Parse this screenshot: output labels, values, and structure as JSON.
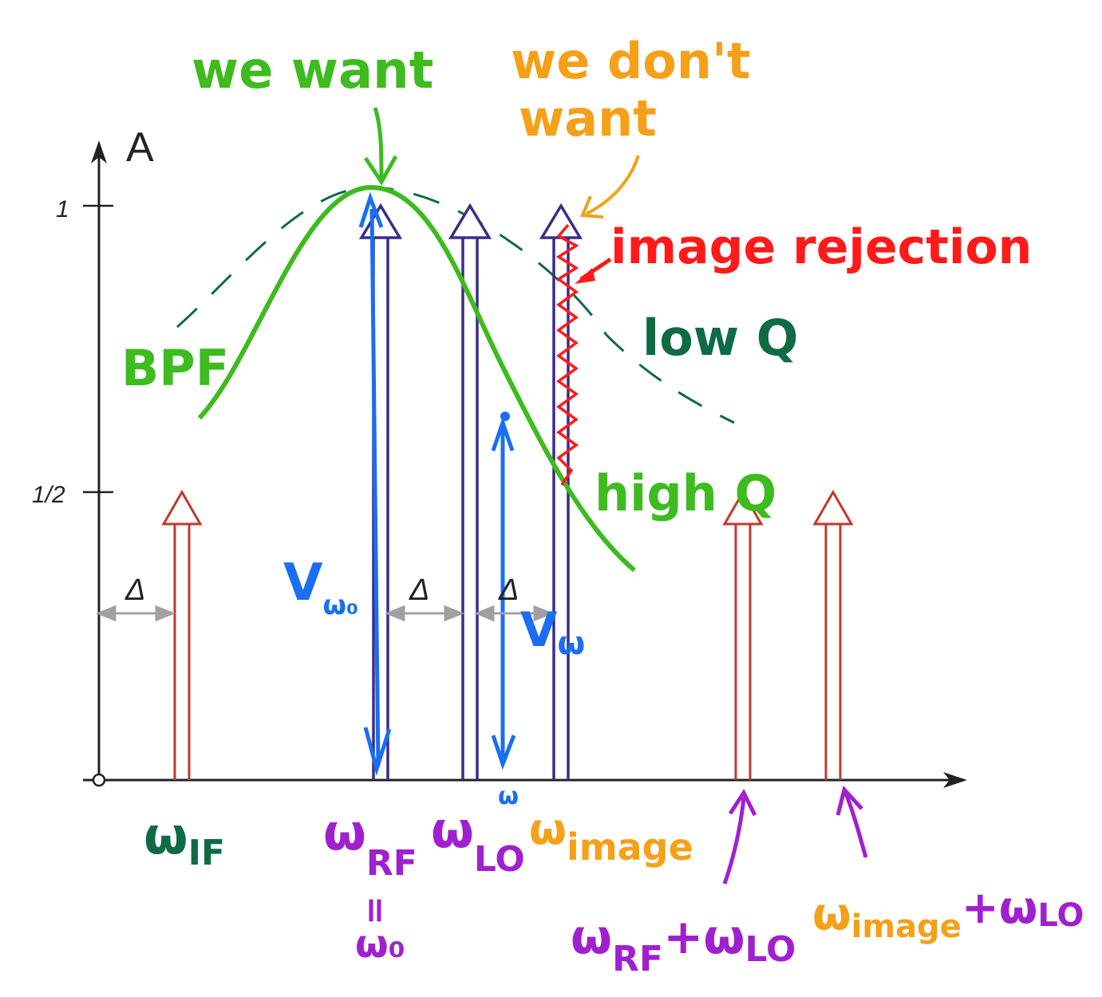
{
  "colors": {
    "axis": "#222222",
    "spur": "#c0392b",
    "lo": "#3d2b8a",
    "want": "#3dbb1f",
    "wantText": "#3dbb1f",
    "dontWant": "#f5a018",
    "rejection": "#ff1a1a",
    "lowQ": "#0e6b45",
    "blue": "#1a6ef2",
    "purple": "#a020d0",
    "delta": "#a0a0a0"
  },
  "axis": {
    "y_label": "A",
    "tick_1": "1",
    "tick_half": "1/2"
  },
  "deltas": [
    "Δ",
    "Δ",
    "Δ"
  ],
  "annotations": {
    "we_want": "we want",
    "we_dont_want_1": "we don't",
    "we_dont_want_2": "want",
    "image_rejection": "image rejection",
    "low_q": "low Q",
    "high_q": "high Q",
    "bpf": "BPF",
    "v_w0_main": "V",
    "v_w0_sub": "ω₀",
    "v_w_main": "V",
    "v_w_sub": "ω",
    "omega_marker": "ω"
  },
  "freq_labels": {
    "w_if": {
      "main": "ω",
      "sub": "IF"
    },
    "w_rf": {
      "main": "ω",
      "sub": "RF"
    },
    "equals": "=",
    "w0": "ω₀",
    "w_lo": {
      "main": "ω",
      "sub": "LO"
    },
    "w_image": {
      "main": "ω",
      "sub": "image"
    },
    "w_rf_plus_lo": {
      "m1": "ω",
      "s1": "RF",
      "plus": "+",
      "m2": "ω",
      "s2": "LO"
    },
    "w_image_plus_lo": {
      "m1": "ω",
      "s1": "image",
      "plus": "+",
      "m2": "ω",
      "s2": "LO"
    }
  }
}
